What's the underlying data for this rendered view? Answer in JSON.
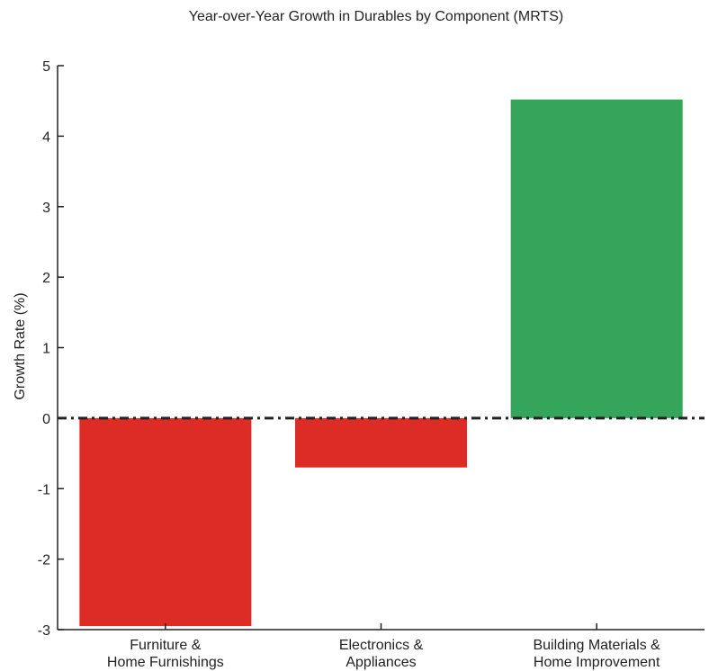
{
  "chart_data": {
    "type": "bar",
    "title": "Year-over-Year Growth in Durables by Component (MRTS)",
    "xlabel": "",
    "ylabel": "Growth Rate (%)",
    "ylim": [
      -3,
      5
    ],
    "yticks": [
      -3,
      -2,
      -1,
      0,
      1,
      2,
      3,
      4,
      5
    ],
    "categories": [
      [
        "Furniture &",
        "Home Furnishings"
      ],
      [
        "Electronics &",
        "Appliances"
      ],
      [
        "Building Materials &",
        "Home Improvement"
      ]
    ],
    "values": [
      -2.95,
      -0.7,
      4.52
    ],
    "colors": {
      "negative": "#dd2c25",
      "positive": "#34a55a",
      "axis": "#222222",
      "zero_line": "#222222"
    },
    "zero_line": "dash-dot",
    "grid": false,
    "legend": "none"
  }
}
